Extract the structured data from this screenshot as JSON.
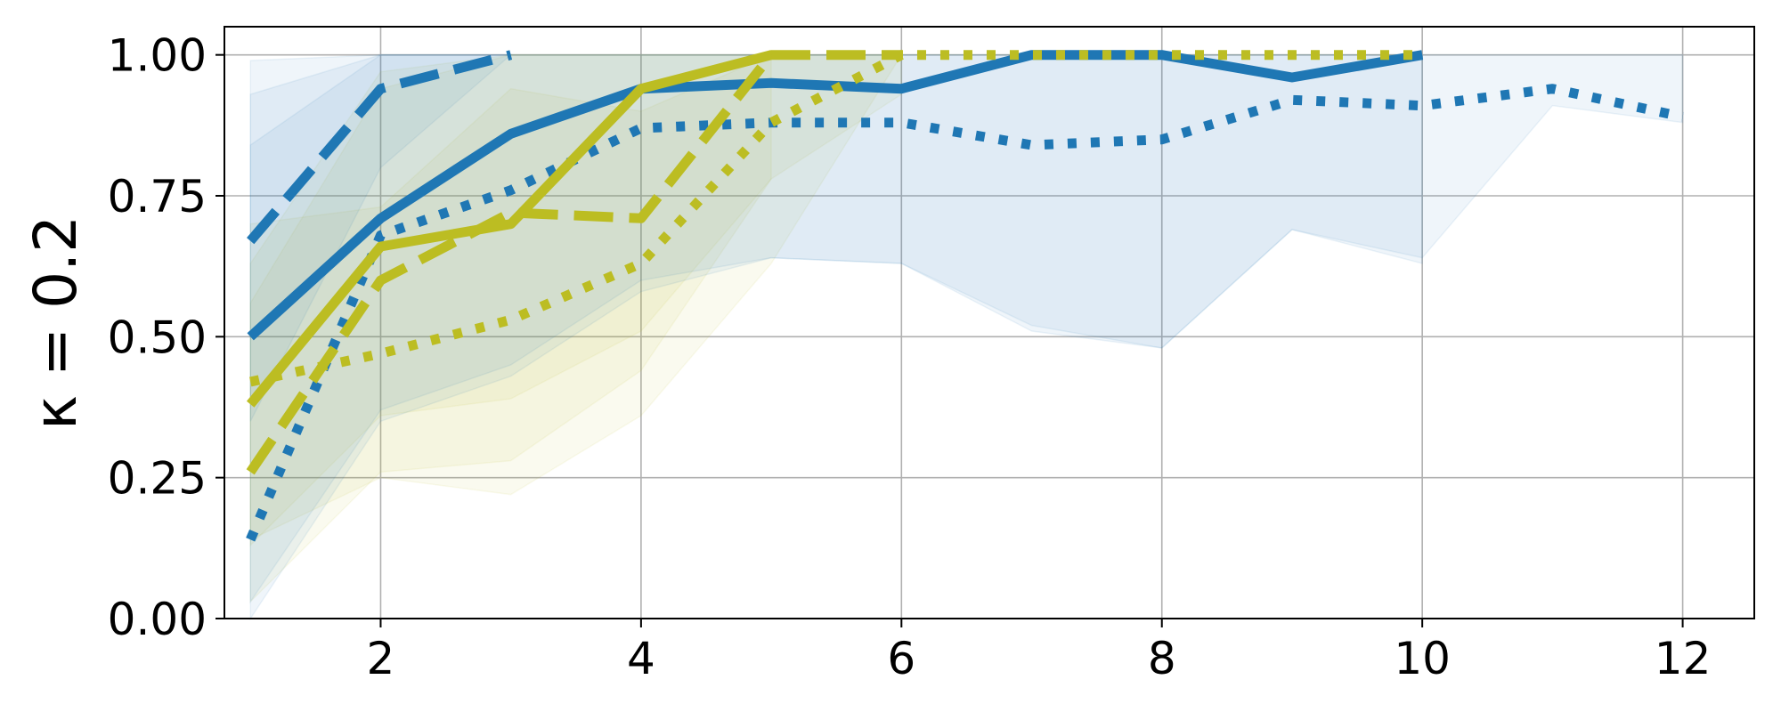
{
  "chart_data": {
    "type": "line",
    "ylabel": "κ = 0.2",
    "xlim": [
      0.8,
      12.55
    ],
    "ylim": [
      0.0,
      1.05
    ],
    "grid": true,
    "x_ticks": [
      2,
      4,
      6,
      8,
      10,
      12
    ],
    "y_ticks": [
      0.0,
      0.25,
      0.5,
      0.75,
      1.0
    ],
    "y_tick_labels": [
      "0.00",
      "0.25",
      "0.50",
      "0.75",
      "1.00"
    ],
    "colors": {
      "blue": "#1f77b4",
      "olive": "#bcbd22"
    },
    "series": [
      {
        "color": "blue",
        "style": "solid",
        "x": [
          1,
          2,
          3,
          4,
          5,
          6,
          7,
          8,
          9,
          10
        ],
        "y": [
          0.5,
          0.71,
          0.86,
          0.94,
          0.95,
          0.94,
          1.0,
          1.0,
          0.96,
          1.0
        ],
        "band_low": [
          0.03,
          0.37,
          0.45,
          0.6,
          0.64,
          0.63,
          0.52,
          0.48,
          0.69,
          0.63
        ],
        "band_high": [
          0.93,
          1.0,
          1.0,
          1.0,
          1.0,
          1.0,
          1.0,
          1.0,
          1.0,
          1.0
        ]
      },
      {
        "color": "blue",
        "style": "dashed",
        "x": [
          1,
          2,
          3
        ],
        "y": [
          0.67,
          0.94,
          1.0
        ],
        "band_low": [
          0.35,
          0.8,
          1.0
        ],
        "band_high": [
          0.99,
          1.0,
          1.0
        ]
      },
      {
        "color": "blue",
        "style": "dotted",
        "x": [
          1,
          2,
          3,
          4,
          5,
          6,
          7,
          8,
          9,
          10,
          11,
          12
        ],
        "y": [
          0.14,
          0.68,
          0.76,
          0.87,
          0.88,
          0.88,
          0.84,
          0.85,
          0.92,
          0.91,
          0.94,
          0.89
        ],
        "band_low": [
          0.0,
          0.35,
          0.43,
          0.58,
          0.64,
          0.63,
          0.51,
          0.48,
          0.69,
          0.64,
          0.91,
          0.88
        ],
        "band_high": [
          0.84,
          1.0,
          1.0,
          1.0,
          1.0,
          1.0,
          1.0,
          1.0,
          1.0,
          1.0,
          1.0,
          1.0
        ]
      },
      {
        "color": "olive",
        "style": "solid",
        "x": [
          1,
          2,
          3,
          4,
          5
        ],
        "y": [
          0.38,
          0.66,
          0.7,
          0.94,
          1.0
        ],
        "band_low": [
          0.13,
          0.36,
          0.39,
          0.51,
          0.78
        ],
        "band_high": [
          0.63,
          0.97,
          1.0,
          1.0,
          1.0
        ]
      },
      {
        "color": "olive",
        "style": "dashed",
        "x": [
          1,
          2,
          3,
          4,
          5,
          6
        ],
        "y": [
          0.26,
          0.6,
          0.72,
          0.71,
          1.0,
          1.0
        ],
        "band_low": [
          0.03,
          0.26,
          0.28,
          0.44,
          0.78,
          0.93
        ],
        "band_high": [
          0.56,
          0.94,
          1.0,
          1.0,
          1.0,
          1.0
        ]
      },
      {
        "color": "olive",
        "style": "dotted",
        "x": [
          1,
          2,
          3,
          4,
          5,
          6,
          7,
          8,
          9,
          10
        ],
        "y": [
          0.42,
          0.47,
          0.53,
          0.63,
          0.88,
          1.0,
          1.0,
          1.0,
          1.0,
          1.0
        ],
        "band_low": [
          0.14,
          0.25,
          0.22,
          0.36,
          0.63,
          1.0,
          1.0,
          1.0,
          1.0,
          1.0
        ],
        "band_high": [
          0.7,
          0.73,
          0.94,
          0.9,
          1.0,
          1.0,
          1.0,
          1.0,
          1.0,
          1.0
        ]
      }
    ]
  }
}
